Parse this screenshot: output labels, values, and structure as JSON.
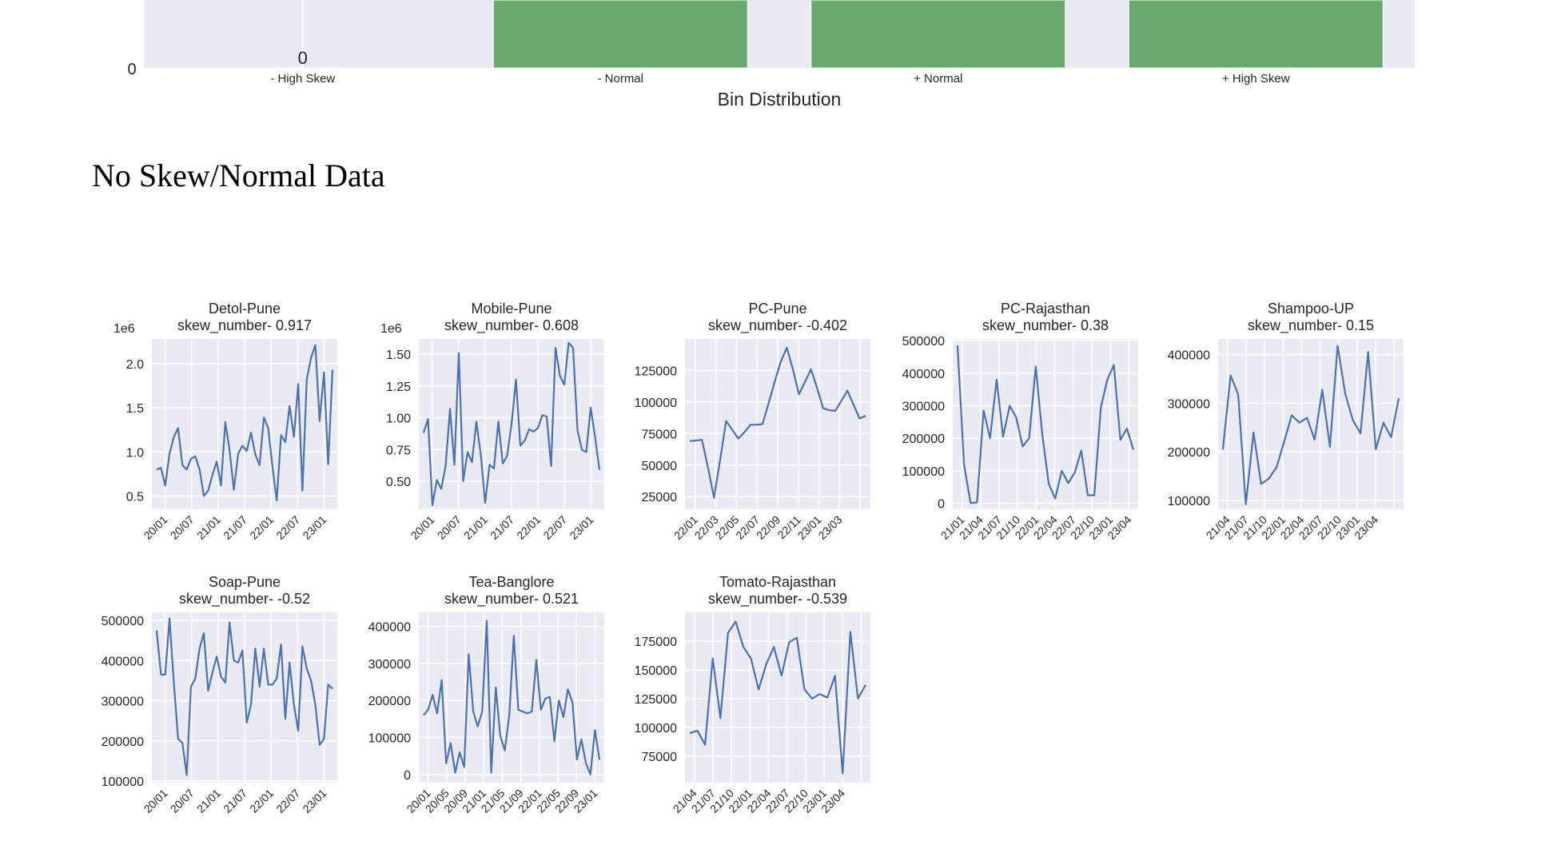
{
  "heading": "No Skew/Normal Data",
  "colors": {
    "plot_background": "#EAEAF2",
    "grid": "#FFFFFF",
    "bar_fill": "#6AA86F",
    "line": "#4C72B0",
    "text": "#262626"
  },
  "chart_data": [
    {
      "id": "bin-distribution",
      "type": "bar",
      "title": "",
      "xlabel": "Bin Distribution",
      "ylabel": "",
      "categories": [
        "- High Skew",
        "- Normal",
        "+ Normal",
        "+ High Skew"
      ],
      "values": [
        0,
        null,
        null,
        null
      ],
      "value_labels": [
        "0",
        "",
        "",
        ""
      ],
      "yticks": [
        "0"
      ],
      "note": "Top of chart is cropped; only the 0 baseline is visible",
      "grid": true
    },
    {
      "id": "detol-pune",
      "type": "line",
      "title": "Detol-Pune",
      "subtitle": "skew_number- 0.917",
      "offset_label": "1e6",
      "ylim": [
        0.35,
        2.28
      ],
      "yticks": [
        0.5,
        1.0,
        1.5,
        2.0
      ],
      "ytick_labels": [
        "0.5",
        "1.0",
        "1.5",
        "2.0"
      ],
      "xlim": [
        0,
        48
      ],
      "xticks": [
        4,
        10,
        16,
        22,
        28,
        34,
        40
      ],
      "xtick_labels": [
        "20/01",
        "20/07",
        "21/01",
        "21/07",
        "22/01",
        "22/07",
        "23/01"
      ],
      "values": [
        0.8,
        0.82,
        0.62,
        0.98,
        1.17,
        1.27,
        0.85,
        0.8,
        0.92,
        0.95,
        0.8,
        0.5,
        0.56,
        0.74,
        0.89,
        0.62,
        1.34,
        1.02,
        0.57,
        0.98,
        1.07,
        1.01,
        1.22,
        0.97,
        0.85,
        1.39,
        1.27,
        0.83,
        0.45,
        1.19,
        1.11,
        1.52,
        1.17,
        1.77,
        0.56,
        1.82,
        2.07,
        2.21,
        1.35,
        1.9,
        0.86,
        1.93
      ]
    },
    {
      "id": "mobile-pune",
      "type": "line",
      "title": "Mobile-Pune",
      "subtitle": "skew_number- 0.608",
      "offset_label": "1e6",
      "ylim": [
        0.28,
        1.62
      ],
      "yticks": [
        0.5,
        0.75,
        1.0,
        1.25,
        1.5
      ],
      "ytick_labels": [
        "0.50",
        "0.75",
        "1.00",
        "1.25",
        "1.50"
      ],
      "xlim": [
        0,
        48
      ],
      "xticks": [
        4,
        10,
        16,
        22,
        28,
        34,
        40
      ],
      "xtick_labels": [
        "20/01",
        "20/07",
        "21/01",
        "21/07",
        "22/01",
        "22/07",
        "23/01"
      ],
      "values": [
        0.88,
        0.99,
        0.31,
        0.51,
        0.44,
        0.62,
        1.07,
        0.63,
        1.51,
        0.5,
        0.73,
        0.65,
        0.97,
        0.71,
        0.33,
        0.63,
        0.6,
        0.97,
        0.64,
        0.7,
        0.95,
        1.3,
        0.78,
        0.82,
        0.91,
        0.89,
        0.92,
        1.02,
        1.01,
        0.62,
        1.55,
        1.33,
        1.26,
        1.59,
        1.55,
        0.9,
        0.75,
        0.73,
        1.08,
        0.85,
        0.59
      ]
    },
    {
      "id": "pc-pune",
      "type": "line",
      "title": "PC-Pune",
      "subtitle": "skew_number- -0.402",
      "offset_label": "",
      "ylim": [
        15000,
        150000
      ],
      "yticks": [
        25000,
        50000,
        75000,
        100000,
        125000
      ],
      "ytick_labels": [
        "25000",
        "50000",
        "75000",
        "100000",
        "125000"
      ],
      "xlim": [
        0,
        18
      ],
      "xticks": [
        2,
        4,
        6,
        8,
        10,
        12,
        14,
        16,
        18
      ],
      "xtick_labels": [
        "22/01",
        "22/03",
        "22/05",
        "22/07",
        "22/09",
        "22/11",
        "23/01",
        "23/03",
        ""
      ],
      "values": [
        69000,
        69500,
        70000,
        48000,
        24000,
        54000,
        85000,
        78000,
        71000,
        76000,
        82000,
        82000,
        82500,
        99000,
        116000,
        132000,
        143000,
        126000,
        106000,
        116000,
        126000,
        111000,
        95000,
        93500,
        93000,
        101000,
        109000,
        98000,
        87000,
        89000
      ],
      "xpositions": "monthly, plotted at half-steps"
    },
    {
      "id": "pc-rajasthan",
      "type": "line",
      "title": "PC-Rajasthan",
      "subtitle": "skew_number- 0.38",
      "offset_label": "",
      "ylim": [
        -18000,
        505000
      ],
      "yticks": [
        0,
        100000,
        200000,
        300000,
        400000,
        500000
      ],
      "ytick_labels": [
        "0",
        "100000",
        "200000",
        "300000",
        "400000",
        "500000"
      ],
      "xlim": [
        0,
        28
      ],
      "xticks": [
        2,
        5,
        8,
        11,
        14,
        17,
        20,
        23,
        26,
        29
      ],
      "xtick_labels": [
        "21/01",
        "21/04",
        "21/07",
        "21/10",
        "22/01",
        "22/04",
        "22/07",
        "22/10",
        "23/01",
        "23/04"
      ],
      "values": [
        485000,
        120000,
        1000,
        3000,
        285000,
        200000,
        380000,
        205000,
        300000,
        265000,
        175000,
        200000,
        420000,
        215000,
        60000,
        15000,
        100000,
        62000,
        95000,
        162000,
        25000,
        25000,
        295000,
        380000,
        425000,
        195000,
        230000,
        165000
      ]
    },
    {
      "id": "shampoo-up",
      "type": "line",
      "title": "Shampoo-UP",
      "subtitle": "skew_number- 0.15",
      "offset_label": "",
      "ylim": [
        82000,
        432000
      ],
      "yticks": [
        100000,
        200000,
        300000,
        400000
      ],
      "ytick_labels": [
        "100000",
        "200000",
        "300000",
        "400000"
      ],
      "xlim": [
        0,
        28
      ],
      "xticks": [
        2,
        5,
        8,
        11,
        14,
        17,
        20,
        23,
        26,
        29
      ],
      "xtick_labels": [
        "21/04",
        "21/07",
        "21/10",
        "22/01",
        "22/04",
        "22/07",
        "22/10",
        "23/01",
        "23/04",
        ""
      ],
      "values": [
        205000,
        357000,
        318000,
        92000,
        240000,
        134000,
        145000,
        168000,
        220000,
        275000,
        260000,
        270000,
        225000,
        328000,
        210000,
        418000,
        320000,
        265000,
        238000,
        405000,
        205000,
        260000,
        230000,
        310000
      ]
    },
    {
      "id": "soap-pune",
      "type": "line",
      "title": "Soap-Pune",
      "subtitle": "skew_number- -0.52",
      "offset_label": "",
      "ylim": [
        96000,
        520000
      ],
      "yticks": [
        100000,
        200000,
        300000,
        400000,
        500000
      ],
      "ytick_labels": [
        "100000",
        "200000",
        "300000",
        "400000",
        "500000"
      ],
      "xlim": [
        0,
        48
      ],
      "xticks": [
        4,
        10,
        16,
        22,
        28,
        34,
        40
      ],
      "xtick_labels": [
        "20/01",
        "20/07",
        "21/01",
        "21/07",
        "22/01",
        "22/07",
        "23/01"
      ],
      "values": [
        475000,
        365000,
        365000,
        505000,
        345000,
        205000,
        195000,
        115000,
        335000,
        355000,
        430000,
        468000,
        325000,
        370000,
        410000,
        360000,
        345000,
        495000,
        400000,
        395000,
        425000,
        245000,
        290000,
        430000,
        335000,
        430000,
        340000,
        340000,
        355000,
        440000,
        255000,
        395000,
        290000,
        225000,
        435000,
        380000,
        350000,
        290000,
        190000,
        205000,
        340000,
        330000
      ]
    },
    {
      "id": "tea-banglore",
      "type": "line",
      "title": "Tea-Banglore",
      "subtitle": "skew_number- 0.521",
      "offset_label": "",
      "ylim": [
        -22000,
        438000
      ],
      "yticks": [
        0,
        100000,
        200000,
        300000,
        400000
      ],
      "ytick_labels": [
        "0",
        "100000",
        "200000",
        "300000",
        "400000"
      ],
      "xlim": [
        0,
        48
      ],
      "xticks": [
        2,
        4,
        6,
        8,
        10,
        12,
        14,
        16,
        18,
        20,
        22,
        24,
        26
      ],
      "xtick_labels": [
        "20/01",
        "20/05",
        "20/09",
        "21/01",
        "21/05",
        "21/09",
        "22/01",
        "22/05",
        "22/09",
        "23/01"
      ],
      "values": [
        160000,
        175000,
        215000,
        165000,
        255000,
        30000,
        85000,
        5000,
        60000,
        20000,
        325000,
        170000,
        130000,
        170000,
        415000,
        5000,
        235000,
        105000,
        65000,
        160000,
        375000,
        175000,
        170000,
        165000,
        170000,
        310000,
        175000,
        205000,
        210000,
        90000,
        200000,
        155000,
        230000,
        195000,
        40000,
        95000,
        30000,
        0,
        120000,
        40000
      ]
    },
    {
      "id": "tomato-rajasthan",
      "type": "line",
      "title": "Tomato-Rajasthan",
      "subtitle": "skew_number- -0.539",
      "offset_label": "",
      "ylim": [
        52000,
        200000
      ],
      "yticks": [
        75000,
        100000,
        125000,
        150000,
        175000
      ],
      "ytick_labels": [
        "75000",
        "100000",
        "125000",
        "150000",
        "175000"
      ],
      "xlim": [
        0,
        28
      ],
      "xticks": [
        2,
        5,
        8,
        11,
        14,
        17,
        20,
        23,
        26,
        29
      ],
      "xtick_labels": [
        "21/04",
        "21/07",
        "21/10",
        "22/01",
        "22/04",
        "22/07",
        "22/10",
        "23/01",
        "23/04",
        ""
      ],
      "values": [
        95000,
        97000,
        85000,
        160000,
        108000,
        182000,
        192000,
        170000,
        160000,
        133000,
        155000,
        170000,
        145000,
        174000,
        178000,
        133000,
        125000,
        129000,
        126000,
        145000,
        60000,
        183000,
        125000,
        137000
      ]
    }
  ]
}
